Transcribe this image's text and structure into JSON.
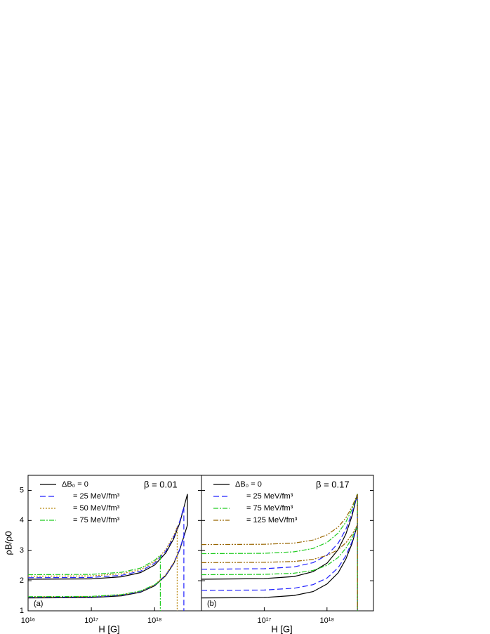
{
  "chart_data": [
    {
      "type": "line",
      "xscale": "log",
      "ylabel": "ρB/ρ0",
      "xlabel": "H [G]",
      "annotation": "β = 0.01",
      "panel_label": "(a)",
      "xlim": [
        1e+16,
        5.5e+18
      ],
      "ylim": [
        1,
        5.5
      ],
      "xticks": [
        {
          "value": 1e+16,
          "label": "10¹⁶"
        },
        {
          "value": 1e+17,
          "label": "10¹⁷"
        },
        {
          "value": 1e+18,
          "label": "10¹⁸"
        }
      ],
      "yticks": [
        1,
        2,
        3,
        4,
        5
      ],
      "series": [
        {
          "name": "ΔB₀ = 0",
          "color": "#000000",
          "dash": "solid",
          "x": [
            1e+16,
            1e+17,
            3e+17,
            6e+17,
            1e+18,
            1.5e+18,
            2e+18,
            2.5e+18,
            3.3e+18,
            3.3e+18,
            2.5e+18,
            2e+18,
            1.5e+18,
            1e+18,
            6e+17,
            3e+17,
            1e+17,
            1e+16
          ],
          "values": [
            2.05,
            2.06,
            2.13,
            2.27,
            2.52,
            2.92,
            3.39,
            3.92,
            4.88,
            3.85,
            3.03,
            2.57,
            2.17,
            1.83,
            1.62,
            1.5,
            1.44,
            1.43
          ]
        },
        {
          "name": "= 25 MeV/fm³",
          "color": "#2020ff",
          "dash": "dashed",
          "x": [
            1e+16,
            1e+17,
            3e+17,
            6e+17,
            1e+18,
            1.5e+18,
            2e+18,
            2.5e+18,
            2.9e+18,
            2.9e+18,
            null,
            1e+16,
            1e+17,
            3e+17,
            6e+17,
            1e+18,
            1.5e+18,
            2e+18,
            2.5e+18,
            2.9e+18
          ],
          "values": [
            2.1,
            2.11,
            2.18,
            2.32,
            2.58,
            2.98,
            3.45,
            3.98,
            4.45,
            1,
            null,
            1.45,
            1.46,
            1.52,
            1.64,
            1.85,
            2.19,
            2.59,
            3.05,
            3.5
          ]
        },
        {
          "name": "= 50 MeV/fm³",
          "color": "#b8860b",
          "dash": "dotted",
          "x": [
            1e+16,
            1e+17,
            3e+17,
            6e+17,
            1e+18,
            1.5e+18,
            2e+18,
            2.27e+18,
            2.27e+18,
            null,
            1e+16,
            1e+17,
            3e+17,
            6e+17,
            1e+18,
            1.5e+18,
            2e+18,
            2.27e+18
          ],
          "values": [
            2.15,
            2.16,
            2.23,
            2.37,
            2.63,
            3.03,
            3.5,
            3.8,
            1,
            null,
            1.46,
            1.47,
            1.53,
            1.65,
            1.86,
            2.2,
            2.6,
            2.82
          ]
        },
        {
          "name": "= 75 MeV/fm³",
          "color": "#22cc22",
          "dash": "dashdot",
          "x": [
            1e+16,
            1e+17,
            3e+17,
            6e+17,
            1e+18,
            1.23e+18,
            1.23e+18,
            null,
            1e+16,
            1e+17,
            3e+17,
            6e+17,
            1e+18,
            1.23e+18
          ],
          "values": [
            2.2,
            2.21,
            2.28,
            2.42,
            2.68,
            2.85,
            1,
            null,
            1.47,
            1.48,
            1.54,
            1.66,
            1.87,
            2.0
          ]
        }
      ]
    },
    {
      "type": "line",
      "xscale": "log",
      "xlabel": "H [G]",
      "annotation": "β = 0.17",
      "panel_label": "(b)",
      "xlim": [
        1e+16,
        5.5e+18
      ],
      "ylim": [
        1,
        5.5
      ],
      "xticks": [
        {
          "value": 1e+17,
          "label": "10¹⁷"
        },
        {
          "value": 1e+18,
          "label": "10¹⁸"
        }
      ],
      "yticks": [
        1,
        2,
        3,
        4,
        5
      ],
      "series": [
        {
          "name": "ΔB₀ = 0",
          "color": "#000000",
          "dash": "solid",
          "x": [
            1e+16,
            1e+17,
            3e+17,
            6e+17,
            1e+18,
            1.5e+18,
            2e+18,
            2.5e+18,
            3.05e+18,
            3.05e+18,
            null,
            1e+16,
            1e+17,
            3e+17,
            6e+17,
            1e+18,
            1.5e+18,
            2e+18,
            2.5e+18,
            3.05e+18
          ],
          "values": [
            2.05,
            2.07,
            2.14,
            2.3,
            2.58,
            3.03,
            3.55,
            4.15,
            4.88,
            1,
            null,
            1.43,
            1.44,
            1.51,
            1.64,
            1.89,
            2.26,
            2.72,
            3.23,
            3.85
          ]
        },
        {
          "name": "= 25 MeV/fm³",
          "color": "#2020ff",
          "dash": "dashed",
          "x": [
            1e+16,
            1e+17,
            3e+17,
            6e+17,
            1e+18,
            1.5e+18,
            2e+18,
            2.5e+18,
            3.05e+18,
            3.05e+18,
            null,
            1e+16,
            1e+17,
            3e+17,
            6e+17,
            1e+18,
            1.5e+18,
            2e+18,
            2.5e+18,
            3.05e+18
          ],
          "values": [
            2.38,
            2.4,
            2.46,
            2.6,
            2.85,
            3.24,
            3.71,
            4.24,
            4.88,
            1,
            null,
            1.68,
            1.69,
            1.75,
            1.87,
            2.09,
            2.43,
            2.83,
            3.29,
            3.85
          ]
        },
        {
          "name": "= 75 MeV/fm³",
          "color": "#22cc22",
          "dash": "dashdot",
          "x": [
            1e+16,
            1e+17,
            3e+17,
            6e+17,
            1e+18,
            1.5e+18,
            2e+18,
            2.5e+18,
            3.05e+18,
            3.05e+18,
            null,
            1e+16,
            1e+17,
            3e+17,
            6e+17,
            1e+18,
            1.5e+18,
            2e+18,
            2.5e+18,
            3.05e+18
          ],
          "values": [
            2.9,
            2.91,
            2.96,
            3.07,
            3.27,
            3.58,
            3.95,
            4.37,
            4.88,
            1,
            null,
            2.2,
            2.21,
            2.25,
            2.34,
            2.51,
            2.77,
            3.08,
            3.42,
            3.85
          ]
        },
        {
          "name": "= 125 MeV/fm³",
          "color": "#996600",
          "dash": "dashdotdot",
          "x": [
            1e+16,
            1e+17,
            3e+17,
            6e+17,
            1e+18,
            1.5e+18,
            2e+18,
            2.5e+18,
            3.05e+18,
            3.05e+18,
            null,
            1e+16,
            1e+17,
            3e+17,
            6e+17,
            1e+18,
            1.5e+18,
            2e+18,
            2.5e+18,
            3.05e+18
          ],
          "values": [
            3.2,
            3.21,
            3.25,
            3.35,
            3.52,
            3.78,
            4.09,
            4.45,
            4.88,
            1,
            null,
            2.6,
            2.61,
            2.64,
            2.71,
            2.84,
            3.03,
            3.26,
            3.53,
            3.85
          ]
        }
      ]
    }
  ]
}
